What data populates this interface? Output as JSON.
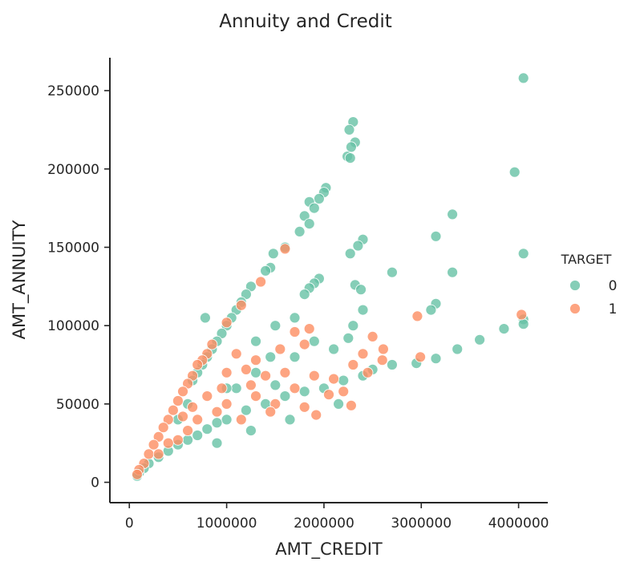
{
  "chart_data": {
    "type": "scatter",
    "title": "Annuity and Credit",
    "xlabel": "AMT_CREDIT",
    "ylabel": "AMT_ANNUITY",
    "xlim": [
      -200000,
      4300000
    ],
    "ylim": [
      -13000,
      271000
    ],
    "xticks": [
      0,
      1000000,
      2000000,
      3000000,
      4000000
    ],
    "xtick_labels": [
      "0",
      "1000000",
      "2000000",
      "3000000",
      "4000000"
    ],
    "yticks": [
      0,
      50000,
      100000,
      150000,
      200000,
      250000
    ],
    "ytick_labels": [
      "0",
      "50000",
      "100000",
      "150000",
      "200000",
      "250000"
    ],
    "grid": false,
    "legend": {
      "title": "TARGET",
      "placement": "center-right",
      "entries": [
        {
          "label": "0",
          "color": "#66c2a5"
        },
        {
          "label": "1",
          "color": "#fc8d62"
        }
      ]
    },
    "series": [
      {
        "name": "0",
        "color": "#66c2a5",
        "points": [
          [
            4050000,
            258000
          ],
          [
            2300000,
            230000
          ],
          [
            2260000,
            225000
          ],
          [
            2320000,
            217000
          ],
          [
            2280000,
            214000
          ],
          [
            2240000,
            208000
          ],
          [
            2270000,
            207000
          ],
          [
            3960000,
            198000
          ],
          [
            2020000,
            188000
          ],
          [
            2000000,
            185000
          ],
          [
            1950000,
            181000
          ],
          [
            1850000,
            179000
          ],
          [
            1900000,
            175000
          ],
          [
            1800000,
            170000
          ],
          [
            3320000,
            171000
          ],
          [
            1850000,
            165000
          ],
          [
            1750000,
            160000
          ],
          [
            3150000,
            157000
          ],
          [
            2400000,
            155000
          ],
          [
            2350000,
            151000
          ],
          [
            1600000,
            150000
          ],
          [
            4050000,
            146000
          ],
          [
            2270000,
            146000
          ],
          [
            1480000,
            146000
          ],
          [
            3320000,
            134000
          ],
          [
            2700000,
            134000
          ],
          [
            1450000,
            137000
          ],
          [
            1400000,
            135000
          ],
          [
            1950000,
            130000
          ],
          [
            1900000,
            127000
          ],
          [
            2320000,
            126000
          ],
          [
            1850000,
            124000
          ],
          [
            1800000,
            120000
          ],
          [
            1250000,
            125000
          ],
          [
            1200000,
            120000
          ],
          [
            2380000,
            123000
          ],
          [
            1150000,
            115000
          ],
          [
            3150000,
            114000
          ],
          [
            3100000,
            110000
          ],
          [
            1100000,
            110000
          ],
          [
            1050000,
            105000
          ],
          [
            4050000,
            104000
          ],
          [
            4050000,
            101000
          ],
          [
            780000,
            105000
          ],
          [
            3850000,
            98000
          ],
          [
            1000000,
            100000
          ],
          [
            2400000,
            110000
          ],
          [
            2300000,
            100000
          ],
          [
            1500000,
            100000
          ],
          [
            1700000,
            105000
          ],
          [
            3600000,
            91000
          ],
          [
            950000,
            95000
          ],
          [
            2250000,
            92000
          ],
          [
            3370000,
            85000
          ],
          [
            900000,
            90000
          ],
          [
            850000,
            85000
          ],
          [
            800000,
            80000
          ],
          [
            3150000,
            79000
          ],
          [
            2950000,
            76000
          ],
          [
            750000,
            75000
          ],
          [
            2700000,
            75000
          ],
          [
            2500000,
            72000
          ],
          [
            700000,
            70000
          ],
          [
            2400000,
            68000
          ],
          [
            650000,
            65000
          ],
          [
            2200000,
            65000
          ],
          [
            1500000,
            62000
          ],
          [
            2000000,
            60000
          ],
          [
            1800000,
            58000
          ],
          [
            1600000,
            55000
          ],
          [
            1400000,
            50000
          ],
          [
            1200000,
            46000
          ],
          [
            1000000,
            40000
          ],
          [
            900000,
            38000
          ],
          [
            800000,
            34000
          ],
          [
            700000,
            30000
          ],
          [
            600000,
            27000
          ],
          [
            500000,
            24000
          ],
          [
            400000,
            20000
          ],
          [
            300000,
            16000
          ],
          [
            200000,
            12000
          ],
          [
            150000,
            9000
          ],
          [
            100000,
            6000
          ],
          [
            80000,
            4000
          ],
          [
            1300000,
            70000
          ],
          [
            1100000,
            60000
          ],
          [
            1700000,
            80000
          ],
          [
            1900000,
            90000
          ],
          [
            2100000,
            85000
          ],
          [
            1300000,
            90000
          ],
          [
            500000,
            40000
          ],
          [
            600000,
            50000
          ],
          [
            1450000,
            80000
          ],
          [
            1000000,
            60000
          ],
          [
            2150000,
            50000
          ],
          [
            1650000,
            40000
          ],
          [
            900000,
            25000
          ],
          [
            1250000,
            33000
          ]
        ]
      },
      {
        "name": "1",
        "color": "#fc8d62",
        "points": [
          [
            4030000,
            107000
          ],
          [
            2960000,
            106000
          ],
          [
            1600000,
            149000
          ],
          [
            1350000,
            128000
          ],
          [
            1150000,
            113000
          ],
          [
            2990000,
            80000
          ],
          [
            2610000,
            85000
          ],
          [
            2600000,
            78000
          ],
          [
            2500000,
            93000
          ],
          [
            2400000,
            82000
          ],
          [
            2300000,
            75000
          ],
          [
            2280000,
            49000
          ],
          [
            1920000,
            43000
          ],
          [
            1000000,
            102000
          ],
          [
            850000,
            88000
          ],
          [
            800000,
            82000
          ],
          [
            750000,
            78000
          ],
          [
            1700000,
            96000
          ],
          [
            1850000,
            98000
          ],
          [
            1800000,
            88000
          ],
          [
            700000,
            75000
          ],
          [
            650000,
            68000
          ],
          [
            600000,
            63000
          ],
          [
            550000,
            58000
          ],
          [
            500000,
            52000
          ],
          [
            450000,
            46000
          ],
          [
            400000,
            40000
          ],
          [
            350000,
            35000
          ],
          [
            300000,
            29000
          ],
          [
            250000,
            24000
          ],
          [
            200000,
            18000
          ],
          [
            150000,
            12000
          ],
          [
            100000,
            8000
          ],
          [
            80000,
            5000
          ],
          [
            1000000,
            70000
          ],
          [
            1200000,
            72000
          ],
          [
            1400000,
            68000
          ],
          [
            1600000,
            70000
          ],
          [
            1900000,
            68000
          ],
          [
            2100000,
            66000
          ],
          [
            1000000,
            50000
          ],
          [
            1300000,
            55000
          ],
          [
            1500000,
            50000
          ],
          [
            1800000,
            48000
          ],
          [
            2050000,
            56000
          ],
          [
            900000,
            45000
          ],
          [
            700000,
            40000
          ],
          [
            600000,
            33000
          ],
          [
            500000,
            27000
          ],
          [
            1100000,
            82000
          ],
          [
            1300000,
            78000
          ],
          [
            1550000,
            85000
          ],
          [
            1250000,
            62000
          ],
          [
            1700000,
            60000
          ],
          [
            2200000,
            58000
          ],
          [
            2450000,
            70000
          ],
          [
            400000,
            25000
          ],
          [
            300000,
            18000
          ],
          [
            800000,
            55000
          ],
          [
            950000,
            60000
          ],
          [
            1450000,
            45000
          ],
          [
            1150000,
            40000
          ],
          [
            650000,
            48000
          ],
          [
            550000,
            42000
          ]
        ]
      }
    ]
  }
}
